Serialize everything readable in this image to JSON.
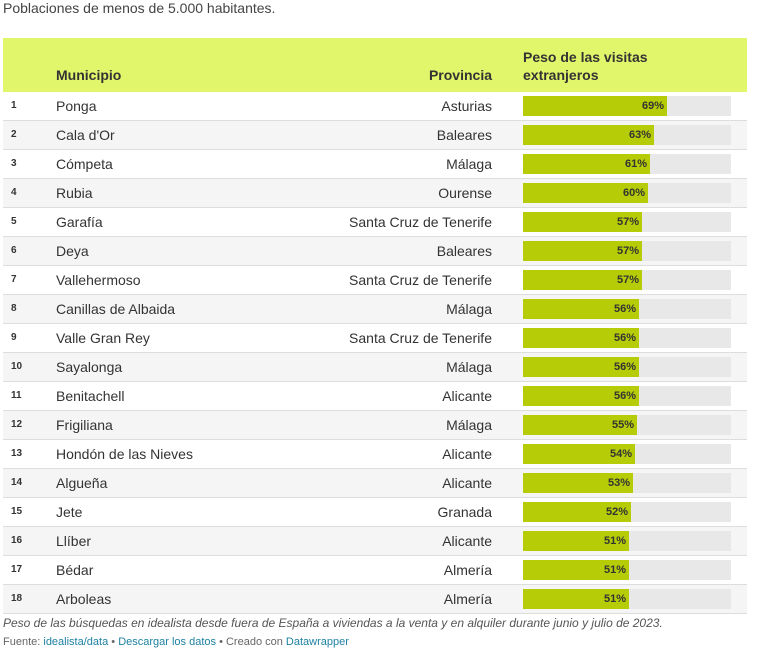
{
  "subtitle": "Poblaciones de menos de 5.000 habitantes.",
  "headers": {
    "municipio": "Municipio",
    "provincia": "Provincia",
    "peso": "Peso de las visitas extranjeros"
  },
  "colors": {
    "header_bg": "#e1f66a",
    "bar": "#b5cc06",
    "track": "#e8e8e8"
  },
  "chart_data": {
    "type": "table",
    "columns": [
      "",
      "Municipio",
      "Provincia",
      "Peso de las visitas extranjeros"
    ],
    "bar_max": 100,
    "rows": [
      {
        "rank": "1",
        "municipio": "Ponga",
        "provincia": "Asturias",
        "value": 69,
        "label": "69%"
      },
      {
        "rank": "2",
        "municipio": "Cala d'Or",
        "provincia": "Baleares",
        "value": 63,
        "label": "63%"
      },
      {
        "rank": "3",
        "municipio": "Cómpeta",
        "provincia": "Málaga",
        "value": 61,
        "label": "61%"
      },
      {
        "rank": "4",
        "municipio": "Rubia",
        "provincia": "Ourense",
        "value": 60,
        "label": "60%"
      },
      {
        "rank": "5",
        "municipio": "Garafía",
        "provincia": "Santa Cruz de Tenerife",
        "value": 57,
        "label": "57%"
      },
      {
        "rank": "6",
        "municipio": "Deya",
        "provincia": "Baleares",
        "value": 57,
        "label": "57%"
      },
      {
        "rank": "7",
        "municipio": "Vallehermoso",
        "provincia": "Santa Cruz de Tenerife",
        "value": 57,
        "label": "57%"
      },
      {
        "rank": "8",
        "municipio": "Canillas de Albaida",
        "provincia": "Málaga",
        "value": 56,
        "label": "56%"
      },
      {
        "rank": "9",
        "municipio": "Valle Gran Rey",
        "provincia": "Santa Cruz de Tenerife",
        "value": 56,
        "label": "56%"
      },
      {
        "rank": "10",
        "municipio": "Sayalonga",
        "provincia": "Málaga",
        "value": 56,
        "label": "56%"
      },
      {
        "rank": "11",
        "municipio": "Benitachell",
        "provincia": "Alicante",
        "value": 56,
        "label": "56%"
      },
      {
        "rank": "12",
        "municipio": "Frigiliana",
        "provincia": "Málaga",
        "value": 55,
        "label": "55%"
      },
      {
        "rank": "13",
        "municipio": "Hondón de las Nieves",
        "provincia": "Alicante",
        "value": 54,
        "label": "54%"
      },
      {
        "rank": "14",
        "municipio": "Algueña",
        "provincia": "Alicante",
        "value": 53,
        "label": "53%"
      },
      {
        "rank": "15",
        "municipio": "Jete",
        "provincia": "Granada",
        "value": 52,
        "label": "52%"
      },
      {
        "rank": "16",
        "municipio": "Llíber",
        "provincia": "Alicante",
        "value": 51,
        "label": "51%"
      },
      {
        "rank": "17",
        "municipio": "Bédar",
        "provincia": "Almería",
        "value": 51,
        "label": "51%"
      },
      {
        "rank": "18",
        "municipio": "Arboleas",
        "provincia": "Almería",
        "value": 51,
        "label": "51%"
      }
    ]
  },
  "note": "Peso de las búsquedas en idealista desde fuera de España a viviendas a la venta y en alquiler durante junio y julio de 2023.",
  "source": {
    "prefix": "Fuente:",
    "source_link": "idealista/data",
    "sep1": "•",
    "download_link": "Descargar los datos",
    "sep2": "• Creado con",
    "tool_link": "Datawrapper"
  }
}
